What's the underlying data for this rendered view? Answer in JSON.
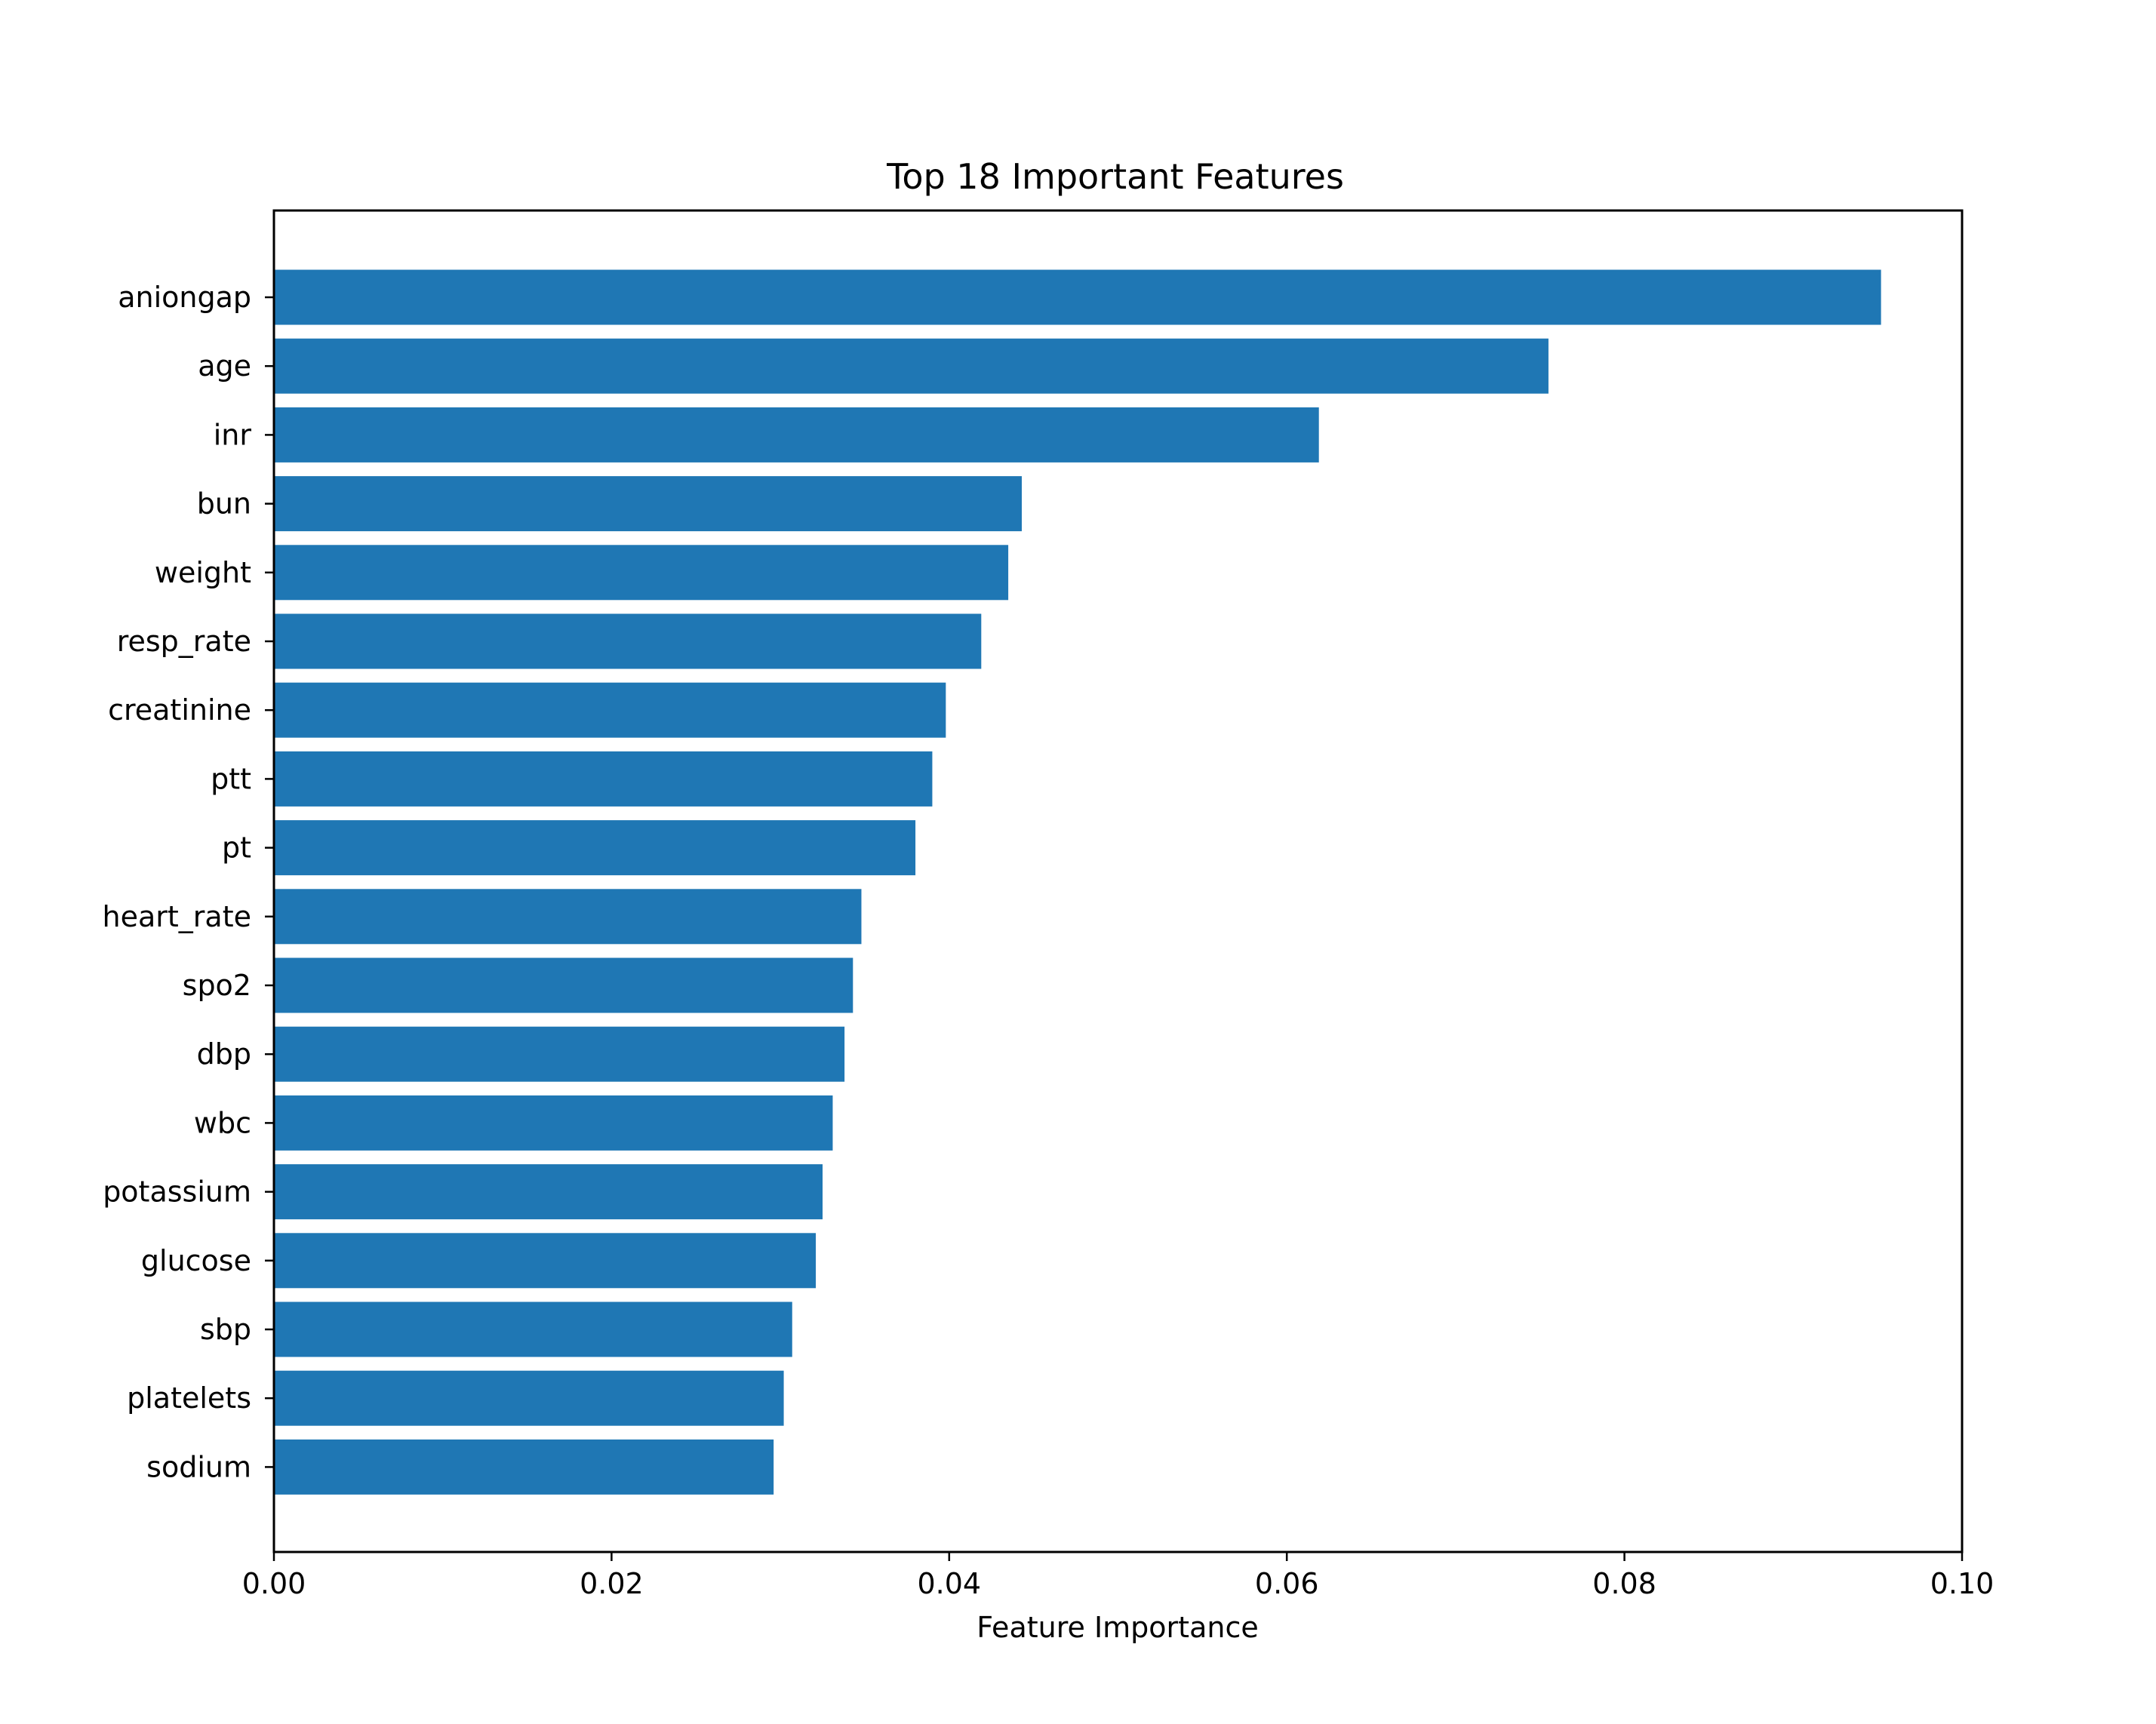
{
  "chart_data": {
    "type": "bar",
    "orientation": "horizontal",
    "title": "Top 18 Important Features",
    "xlabel": "Feature Importance",
    "ylabel": "",
    "xlim": [
      0,
      0.1
    ],
    "xticks": [
      "0.00",
      "0.02",
      "0.04",
      "0.06",
      "0.08",
      "0.10"
    ],
    "grid": false,
    "bar_color": "#1f77b4",
    "categories": [
      "aniongap",
      "age",
      "inr",
      "bun",
      "weight",
      "resp_rate",
      "creatinine",
      "ptt",
      "pt",
      "heart_rate",
      "spo2",
      "dbp",
      "wbc",
      "potassium",
      "glucose",
      "sbp",
      "platelets",
      "sodium"
    ],
    "values": [
      0.0952,
      0.0755,
      0.0619,
      0.0443,
      0.0435,
      0.0419,
      0.0398,
      0.039,
      0.038,
      0.0348,
      0.0343,
      0.0338,
      0.0331,
      0.0325,
      0.0321,
      0.0307,
      0.0302,
      0.0296
    ]
  }
}
